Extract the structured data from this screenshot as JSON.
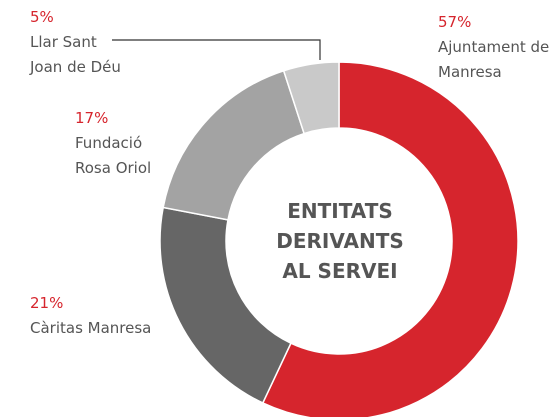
{
  "chart_data": {
    "type": "donut",
    "title": "ENTITATS DERIVANTS AL SERVEI",
    "categories": [
      "Ajuntament de Manresa",
      "Càritas Manresa",
      "Fundació Rosa Oriol",
      "Llar Sant Joan de Déu"
    ],
    "values": [
      57,
      21,
      17,
      5
    ],
    "value_labels": [
      "57%",
      "21%",
      "17%",
      "5%"
    ],
    "colors": [
      "#d6252d",
      "#666666",
      "#a3a3a3",
      "#c9c9c9"
    ]
  }
}
